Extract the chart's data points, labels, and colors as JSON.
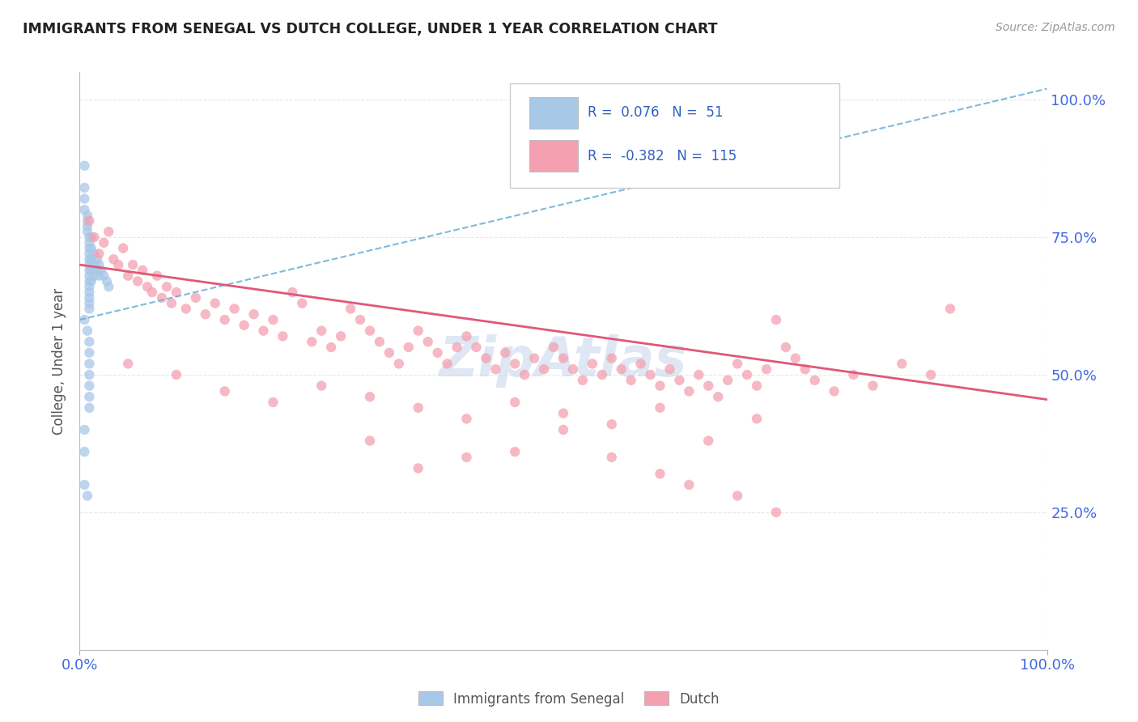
{
  "title": "IMMIGRANTS FROM SENEGAL VS DUTCH COLLEGE, UNDER 1 YEAR CORRELATION CHART",
  "source": "Source: ZipAtlas.com",
  "ylabel": "College, Under 1 year",
  "xmin": 0.0,
  "xmax": 1.0,
  "ymin": 0.0,
  "ymax": 1.05,
  "legend_labels": [
    "Immigrants from Senegal",
    "Dutch"
  ],
  "r_senegal": 0.076,
  "n_senegal": 51,
  "r_dutch": -0.382,
  "n_dutch": 115,
  "color_senegal": "#A8C8E8",
  "color_dutch": "#F4A0B0",
  "trendline_senegal_color": "#6aaed6",
  "trendline_dutch_color": "#E05878",
  "legend_text_color": "#3060C0",
  "watermark_color": "#C8D8EC",
  "background_color": "#FFFFFF",
  "grid_color": "#E8E8E8",
  "title_color": "#222222",
  "right_axis_color": "#4169E1",
  "senegal_points": [
    [
      0.005,
      0.88
    ],
    [
      0.005,
      0.84
    ],
    [
      0.005,
      0.82
    ],
    [
      0.005,
      0.8
    ],
    [
      0.008,
      0.79
    ],
    [
      0.008,
      0.78
    ],
    [
      0.008,
      0.77
    ],
    [
      0.008,
      0.76
    ],
    [
      0.01,
      0.75
    ],
    [
      0.01,
      0.74
    ],
    [
      0.01,
      0.73
    ],
    [
      0.01,
      0.72
    ],
    [
      0.01,
      0.71
    ],
    [
      0.01,
      0.7
    ],
    [
      0.01,
      0.69
    ],
    [
      0.01,
      0.68
    ],
    [
      0.01,
      0.67
    ],
    [
      0.01,
      0.66
    ],
    [
      0.01,
      0.65
    ],
    [
      0.01,
      0.64
    ],
    [
      0.01,
      0.63
    ],
    [
      0.01,
      0.62
    ],
    [
      0.012,
      0.75
    ],
    [
      0.012,
      0.73
    ],
    [
      0.012,
      0.71
    ],
    [
      0.012,
      0.69
    ],
    [
      0.012,
      0.67
    ],
    [
      0.015,
      0.72
    ],
    [
      0.015,
      0.7
    ],
    [
      0.015,
      0.68
    ],
    [
      0.018,
      0.71
    ],
    [
      0.018,
      0.69
    ],
    [
      0.02,
      0.7
    ],
    [
      0.02,
      0.68
    ],
    [
      0.022,
      0.69
    ],
    [
      0.025,
      0.68
    ],
    [
      0.028,
      0.67
    ],
    [
      0.03,
      0.66
    ],
    [
      0.005,
      0.6
    ],
    [
      0.008,
      0.58
    ],
    [
      0.01,
      0.56
    ],
    [
      0.01,
      0.54
    ],
    [
      0.01,
      0.52
    ],
    [
      0.01,
      0.5
    ],
    [
      0.01,
      0.48
    ],
    [
      0.01,
      0.46
    ],
    [
      0.01,
      0.44
    ],
    [
      0.005,
      0.4
    ],
    [
      0.005,
      0.36
    ],
    [
      0.005,
      0.3
    ],
    [
      0.008,
      0.28
    ]
  ],
  "dutch_points": [
    [
      0.01,
      0.78
    ],
    [
      0.015,
      0.75
    ],
    [
      0.02,
      0.72
    ],
    [
      0.025,
      0.74
    ],
    [
      0.03,
      0.76
    ],
    [
      0.035,
      0.71
    ],
    [
      0.04,
      0.7
    ],
    [
      0.045,
      0.73
    ],
    [
      0.05,
      0.68
    ],
    [
      0.055,
      0.7
    ],
    [
      0.06,
      0.67
    ],
    [
      0.065,
      0.69
    ],
    [
      0.07,
      0.66
    ],
    [
      0.075,
      0.65
    ],
    [
      0.08,
      0.68
    ],
    [
      0.085,
      0.64
    ],
    [
      0.09,
      0.66
    ],
    [
      0.095,
      0.63
    ],
    [
      0.1,
      0.65
    ],
    [
      0.11,
      0.62
    ],
    [
      0.12,
      0.64
    ],
    [
      0.13,
      0.61
    ],
    [
      0.14,
      0.63
    ],
    [
      0.15,
      0.6
    ],
    [
      0.16,
      0.62
    ],
    [
      0.17,
      0.59
    ],
    [
      0.18,
      0.61
    ],
    [
      0.19,
      0.58
    ],
    [
      0.2,
      0.6
    ],
    [
      0.21,
      0.57
    ],
    [
      0.22,
      0.65
    ],
    [
      0.23,
      0.63
    ],
    [
      0.24,
      0.56
    ],
    [
      0.25,
      0.58
    ],
    [
      0.26,
      0.55
    ],
    [
      0.27,
      0.57
    ],
    [
      0.28,
      0.62
    ],
    [
      0.29,
      0.6
    ],
    [
      0.3,
      0.58
    ],
    [
      0.31,
      0.56
    ],
    [
      0.32,
      0.54
    ],
    [
      0.33,
      0.52
    ],
    [
      0.34,
      0.55
    ],
    [
      0.35,
      0.58
    ],
    [
      0.36,
      0.56
    ],
    [
      0.37,
      0.54
    ],
    [
      0.38,
      0.52
    ],
    [
      0.39,
      0.55
    ],
    [
      0.4,
      0.57
    ],
    [
      0.41,
      0.55
    ],
    [
      0.42,
      0.53
    ],
    [
      0.43,
      0.51
    ],
    [
      0.44,
      0.54
    ],
    [
      0.45,
      0.52
    ],
    [
      0.46,
      0.5
    ],
    [
      0.47,
      0.53
    ],
    [
      0.48,
      0.51
    ],
    [
      0.49,
      0.55
    ],
    [
      0.5,
      0.53
    ],
    [
      0.51,
      0.51
    ],
    [
      0.52,
      0.49
    ],
    [
      0.53,
      0.52
    ],
    [
      0.54,
      0.5
    ],
    [
      0.55,
      0.53
    ],
    [
      0.56,
      0.51
    ],
    [
      0.57,
      0.49
    ],
    [
      0.58,
      0.52
    ],
    [
      0.59,
      0.5
    ],
    [
      0.6,
      0.48
    ],
    [
      0.61,
      0.51
    ],
    [
      0.62,
      0.49
    ],
    [
      0.63,
      0.47
    ],
    [
      0.64,
      0.5
    ],
    [
      0.65,
      0.48
    ],
    [
      0.66,
      0.46
    ],
    [
      0.67,
      0.49
    ],
    [
      0.68,
      0.52
    ],
    [
      0.69,
      0.5
    ],
    [
      0.7,
      0.48
    ],
    [
      0.71,
      0.51
    ],
    [
      0.72,
      0.6
    ],
    [
      0.73,
      0.55
    ],
    [
      0.74,
      0.53
    ],
    [
      0.75,
      0.51
    ],
    [
      0.76,
      0.49
    ],
    [
      0.78,
      0.47
    ],
    [
      0.8,
      0.5
    ],
    [
      0.82,
      0.48
    ],
    [
      0.85,
      0.52
    ],
    [
      0.88,
      0.5
    ],
    [
      0.9,
      0.62
    ],
    [
      0.05,
      0.52
    ],
    [
      0.1,
      0.5
    ],
    [
      0.15,
      0.47
    ],
    [
      0.2,
      0.45
    ],
    [
      0.25,
      0.48
    ],
    [
      0.3,
      0.46
    ],
    [
      0.35,
      0.44
    ],
    [
      0.4,
      0.42
    ],
    [
      0.45,
      0.45
    ],
    [
      0.5,
      0.43
    ],
    [
      0.55,
      0.41
    ],
    [
      0.6,
      0.44
    ],
    [
      0.65,
      0.38
    ],
    [
      0.7,
      0.42
    ],
    [
      0.63,
      0.3
    ],
    [
      0.68,
      0.28
    ],
    [
      0.72,
      0.25
    ],
    [
      0.4,
      0.35
    ],
    [
      0.5,
      0.4
    ],
    [
      0.55,
      0.35
    ],
    [
      0.3,
      0.38
    ],
    [
      0.35,
      0.33
    ],
    [
      0.45,
      0.36
    ],
    [
      0.6,
      0.32
    ]
  ]
}
